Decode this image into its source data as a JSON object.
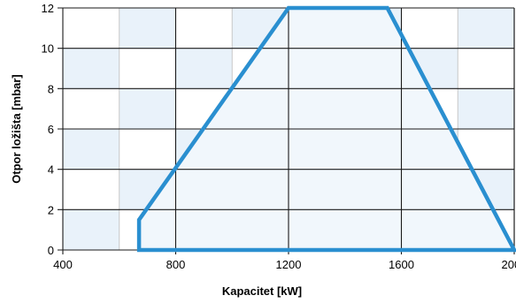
{
  "chart_data": {
    "type": "area",
    "title": "",
    "xlabel": "Kapacitet [kW]",
    "ylabel": "Otpor ložišta  [mbar]",
    "xlim": [
      400,
      2000
    ],
    "ylim": [
      0,
      12
    ],
    "x_ticks": [
      400,
      800,
      1200,
      1600,
      2000
    ],
    "y_ticks": [
      0,
      2,
      4,
      6,
      8,
      10,
      12
    ],
    "grid": true,
    "series": [
      {
        "x": [
          670,
          670,
          1200,
          1550,
          2000,
          670
        ],
        "y": [
          0,
          1.5,
          12,
          12,
          0,
          0
        ]
      }
    ],
    "colors": {
      "line": "#2a8fd0",
      "fill": "#f1f7fc",
      "cell_shade": "#e9f2fa",
      "grid_major": "#1a1a1a",
      "grid_minor": "#c7c7c7"
    }
  }
}
